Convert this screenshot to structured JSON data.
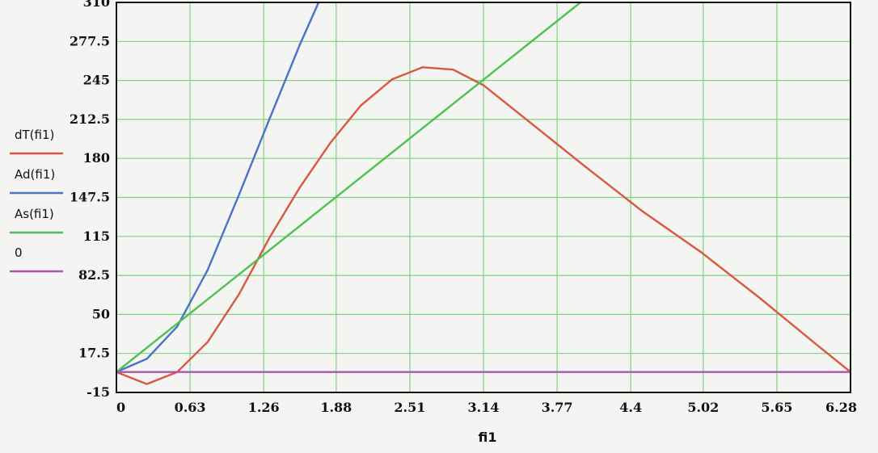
{
  "chart_data": {
    "type": "line",
    "xlabel": "fi1",
    "xlim": [
      0,
      6.28
    ],
    "ylim": [
      -15,
      310
    ],
    "grid": true,
    "legend_position": "left",
    "x_ticks": [
      "0",
      "0.63",
      "1.26",
      "1.88",
      "2.51",
      "3.14",
      "3.77",
      "4.4",
      "5.02",
      "5.65",
      "6.28"
    ],
    "y_ticks": [
      "-15",
      "17.5",
      "50",
      "82.5",
      "115",
      "147.5",
      "180",
      "212.5",
      "245",
      "277.5",
      "310"
    ],
    "series": [
      {
        "name": "dT(fi1)",
        "color": "#d9573f",
        "x": [
          0,
          0.26,
          0.52,
          0.78,
          1.05,
          1.31,
          1.57,
          1.83,
          2.09,
          2.36,
          2.62,
          2.88,
          3.14,
          3.5,
          4.0,
          4.5,
          5.0,
          5.5,
          6.0,
          6.28
        ],
        "y": [
          2,
          -8,
          2,
          27,
          67,
          114,
          156,
          193,
          224,
          246,
          256,
          254,
          241,
          213,
          174,
          136,
          102,
          64,
          24,
          2
        ]
      },
      {
        "name": "Ad(fi1)",
        "color": "#4a72c9",
        "x": [
          0,
          0.26,
          0.52,
          0.78,
          1.05,
          1.31,
          1.57,
          1.73
        ],
        "y": [
          2,
          13,
          40,
          87,
          150,
          213,
          275,
          310
        ]
      },
      {
        "name": "As(fi1)",
        "color": "#4ec24e",
        "x": [
          0,
          3.97
        ],
        "y": [
          2,
          310
        ]
      },
      {
        "name": "0",
        "color": "#b14fb4",
        "x": [
          0,
          6.28
        ],
        "y": [
          2,
          2
        ]
      }
    ]
  }
}
